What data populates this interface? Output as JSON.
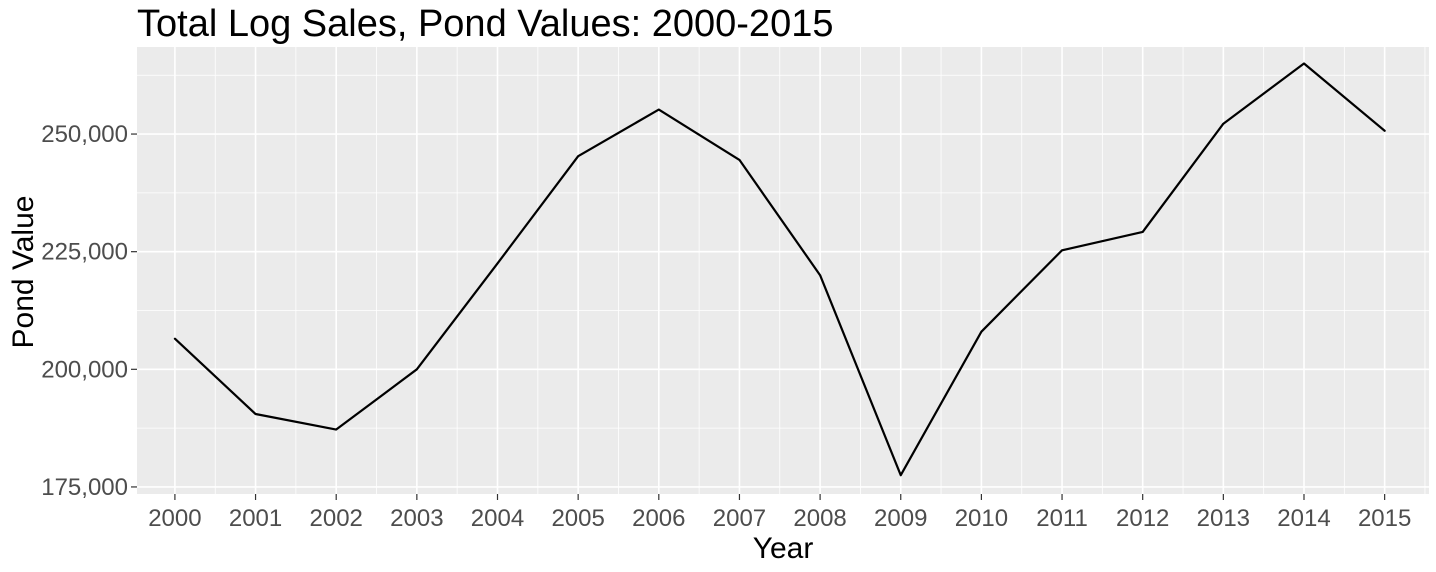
{
  "chart_data": {
    "type": "line",
    "title": "Total Log Sales, Pond Values: 2000-2015",
    "xlabel": "Year",
    "ylabel": "Pond Value",
    "x": [
      2000,
      2001,
      2002,
      2003,
      2004,
      2005,
      2006,
      2007,
      2008,
      2009,
      2010,
      2011,
      2012,
      2013,
      2014,
      2015
    ],
    "x_tick_labels": [
      "2000",
      "2001",
      "2002",
      "2003",
      "2004",
      "2005",
      "2006",
      "2007",
      "2008",
      "2009",
      "2010",
      "2011",
      "2012",
      "2013",
      "2014",
      "2015"
    ],
    "series": [
      {
        "values": [
          206500,
          190500,
          187200,
          200000,
          222500,
          245300,
          255200,
          244500,
          220000,
          177500,
          208000,
          225300,
          229200,
          252200,
          265000,
          250700
        ]
      }
    ],
    "y_ticks": [
      175000,
      200000,
      225000,
      250000
    ],
    "y_tick_labels": [
      "175,000",
      "200,000",
      "225,000",
      "250,000"
    ],
    "xlim": [
      1999.53,
      2015.55
    ],
    "ylim": [
      173500,
      268500
    ],
    "grid": true,
    "legend": "none",
    "colors": {
      "panel_background": "#ebebeb",
      "grid": "#ffffff",
      "line": "#000000",
      "tick_label": "#4d4d4d"
    }
  }
}
